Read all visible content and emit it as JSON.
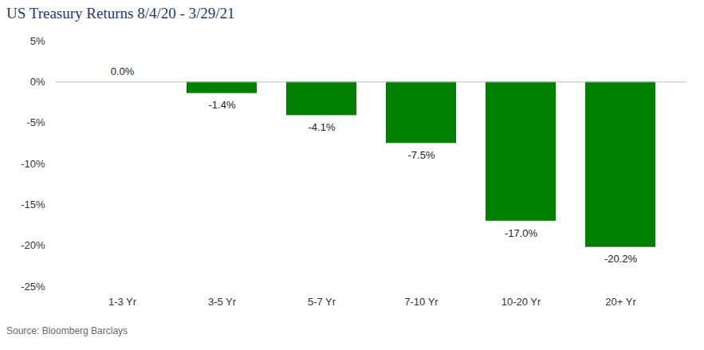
{
  "chart_data": {
    "type": "bar",
    "title": "US Treasury Returns 8/4/20 - 3/29/21",
    "categories": [
      "1-3 Yr",
      "3-5 Yr",
      "5-7 Yr",
      "7-10 Yr",
      "10-20 Yr",
      "20+ Yr"
    ],
    "values": [
      0.0,
      -1.4,
      -4.1,
      -7.5,
      -17.0,
      -20.2
    ],
    "value_labels": [
      "0.0%",
      "-1.4%",
      "-4.1%",
      "-7.5%",
      "-17.0%",
      "-20.2%"
    ],
    "color": "#008000",
    "ylim": [
      -25,
      5
    ],
    "yticks": [
      {
        "value": 5,
        "label": "5%"
      },
      {
        "value": 0,
        "label": "0%"
      },
      {
        "value": -5,
        "label": "-5%"
      },
      {
        "value": -10,
        "label": "-10%"
      },
      {
        "value": -15,
        "label": "-15%"
      },
      {
        "value": -20,
        "label": "-20%"
      },
      {
        "value": -25,
        "label": "-25%"
      }
    ],
    "grid": false,
    "data_labels": true,
    "caption": "Source: Bloomberg Barclays"
  }
}
